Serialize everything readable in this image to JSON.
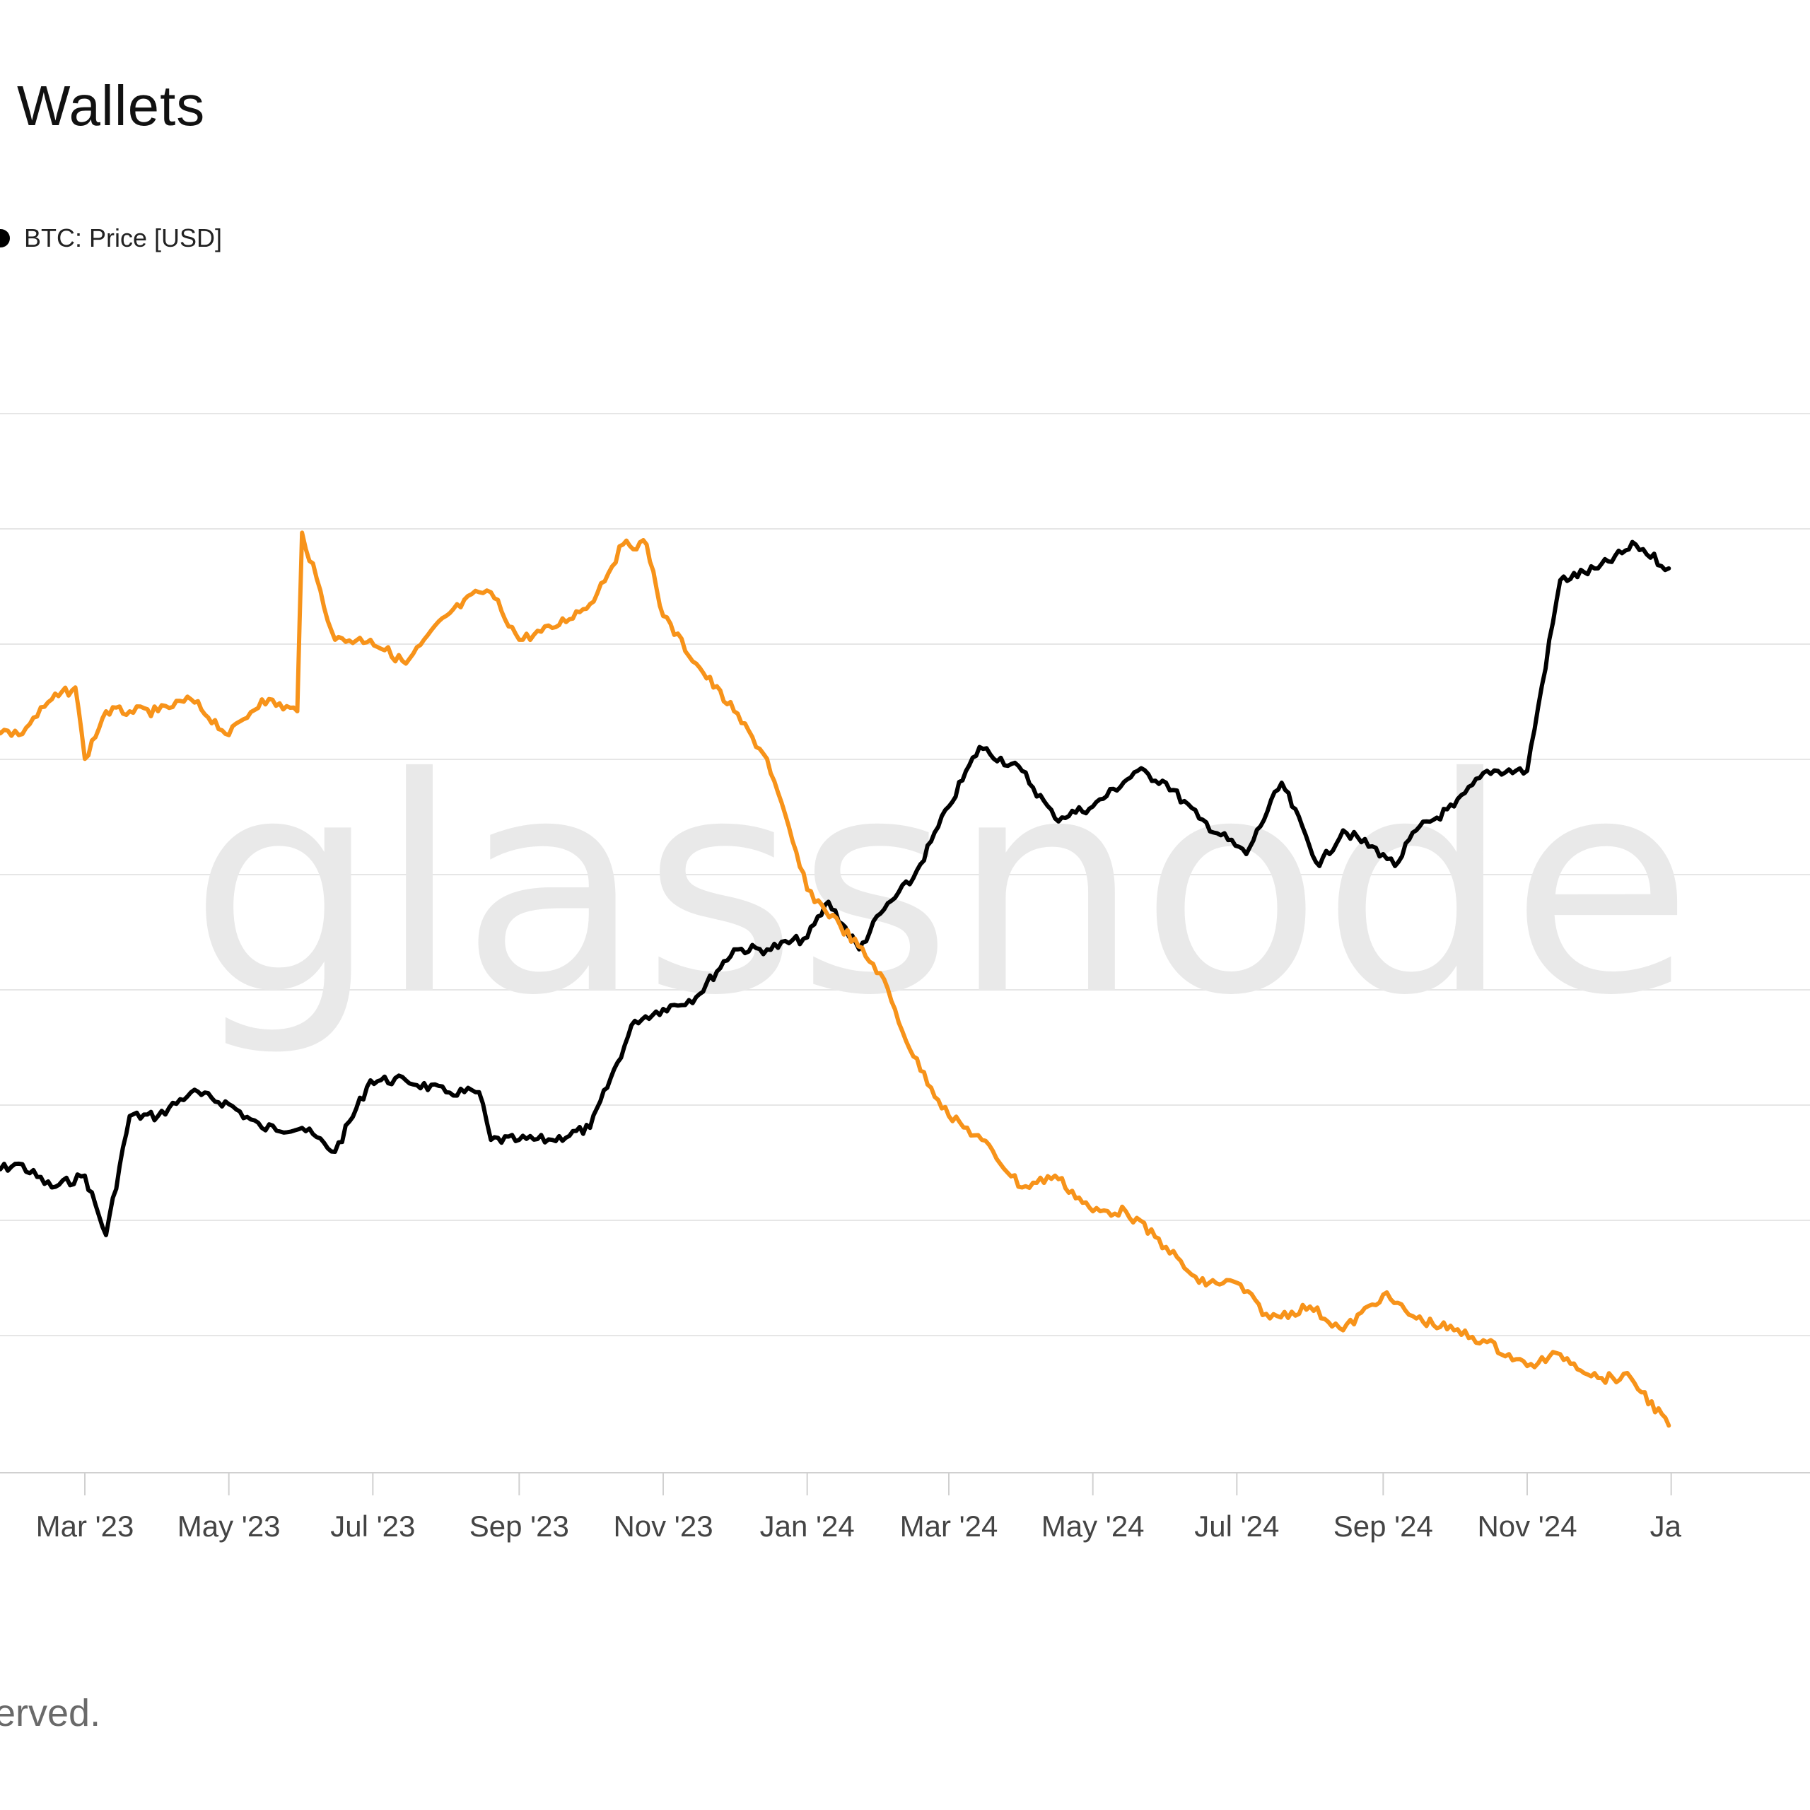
{
  "title": "Wallets",
  "legend": {
    "label": "BTC: Price [USD]"
  },
  "footer": "erved.",
  "watermark": "glassnode",
  "colors": {
    "price_line": "#000000",
    "wallets_line": "#F7931A",
    "grid": "#e6e6e6",
    "axis": "#d0d0d0",
    "watermark": "#e9e9e9"
  },
  "chart_data": {
    "type": "line",
    "x_tick_labels": [
      "Mar '23",
      "May '23",
      "Jul '23",
      "Sep '23",
      "Nov '23",
      "Jan '24",
      "Mar '24",
      "May '24",
      "Jul '24",
      "Sep '24",
      "Nov '24",
      "Ja"
    ],
    "grid": true,
    "y_scale": "normalized 0-10 (axis labels not visible)",
    "series": [
      {
        "name": "BTC: Price [USD]",
        "color": "#000000",
        "x": [
          "2023-01-15",
          "2023-02-01",
          "2023-02-15",
          "2023-03-01",
          "2023-03-10",
          "2023-03-20",
          "2023-04-01",
          "2023-04-15",
          "2023-05-01",
          "2023-05-15",
          "2023-06-01",
          "2023-06-15",
          "2023-06-30",
          "2023-07-15",
          "2023-08-01",
          "2023-08-15",
          "2023-08-20",
          "2023-09-01",
          "2023-09-15",
          "2023-10-01",
          "2023-10-20",
          "2023-11-01",
          "2023-11-15",
          "2023-12-01",
          "2023-12-15",
          "2024-01-01",
          "2024-01-10",
          "2024-01-23",
          "2024-02-01",
          "2024-02-15",
          "2024-03-01",
          "2024-03-14",
          "2024-04-01",
          "2024-04-15",
          "2024-05-01",
          "2024-05-20",
          "2024-06-01",
          "2024-06-15",
          "2024-07-05",
          "2024-07-20",
          "2024-08-05",
          "2024-08-15",
          "2024-09-01",
          "2024-09-06",
          "2024-09-15",
          "2024-10-01",
          "2024-10-15",
          "2024-11-01",
          "2024-11-15",
          "2024-12-01",
          "2024-12-17",
          "2024-12-31"
        ],
        "y": [
          2.6,
          2.7,
          2.5,
          2.6,
          2.1,
          3.1,
          3.1,
          3.3,
          3.2,
          3.0,
          3.0,
          2.8,
          3.4,
          3.4,
          3.3,
          3.3,
          2.9,
          2.9,
          2.9,
          3.0,
          3.9,
          4.0,
          4.1,
          4.5,
          4.5,
          4.6,
          4.9,
          4.5,
          4.8,
          5.1,
          5.7,
          6.2,
          6.0,
          5.6,
          5.7,
          6.0,
          5.9,
          5.6,
          5.3,
          5.9,
          5.2,
          5.5,
          5.3,
          5.2,
          5.5,
          5.7,
          6.0,
          6.0,
          7.6,
          7.7,
          7.9,
          7.7
        ]
      },
      {
        "name": "",
        "color": "#F7931A",
        "x": [
          "2023-01-15",
          "2023-02-01",
          "2023-02-15",
          "2023-02-25",
          "2023-03-01",
          "2023-03-10",
          "2023-03-20",
          "2023-04-01",
          "2023-04-15",
          "2023-05-01",
          "2023-05-15",
          "2023-05-30",
          "2023-06-01",
          "2023-06-15",
          "2023-06-30",
          "2023-07-15",
          "2023-08-01",
          "2023-08-15",
          "2023-08-20",
          "2023-09-01",
          "2023-09-15",
          "2023-10-01",
          "2023-10-15",
          "2023-10-25",
          "2023-11-01",
          "2023-11-15",
          "2023-12-01",
          "2023-12-15",
          "2024-01-01",
          "2024-01-15",
          "2024-02-01",
          "2024-02-15",
          "2024-03-01",
          "2024-03-15",
          "2024-04-01",
          "2024-04-15",
          "2024-05-01",
          "2024-05-15",
          "2024-06-01",
          "2024-06-15",
          "2024-07-01",
          "2024-07-15",
          "2024-08-01",
          "2024-08-15",
          "2024-09-01",
          "2024-09-15",
          "2024-10-01",
          "2024-10-15",
          "2024-11-01",
          "2024-11-15",
          "2024-12-01",
          "2024-12-15",
          "2024-12-31"
        ],
        "y": [
          6.4,
          6.3,
          6.6,
          6.7,
          6.1,
          6.5,
          6.5,
          6.5,
          6.6,
          6.3,
          6.6,
          6.5,
          8.0,
          7.1,
          7.1,
          6.9,
          7.3,
          7.5,
          7.5,
          7.1,
          7.2,
          7.4,
          7.9,
          7.9,
          7.3,
          6.9,
          6.5,
          6.1,
          5.0,
          4.7,
          4.3,
          3.6,
          3.1,
          2.9,
          2.5,
          2.6,
          2.3,
          2.3,
          2.0,
          1.7,
          1.7,
          1.4,
          1.5,
          1.3,
          1.6,
          1.4,
          1.3,
          1.2,
          1.0,
          1.1,
          0.9,
          0.9,
          0.5
        ]
      }
    ]
  }
}
